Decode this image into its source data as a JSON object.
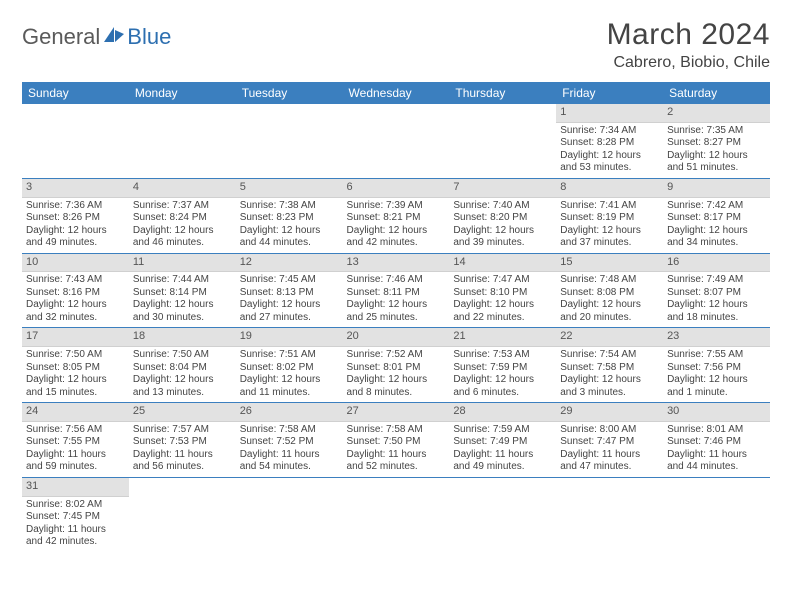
{
  "brand": {
    "part1": "General",
    "part2": "Blue"
  },
  "title": "March 2024",
  "location": "Cabrero, Biobio, Chile",
  "colors": {
    "header_bg": "#3b7fbf",
    "header_text": "#ffffff",
    "daybar_bg": "#e2e2e2",
    "row_border": "#3b7fbf",
    "logo_accent": "#2d6fb0",
    "logo_text": "#5a5a5a"
  },
  "day_header_labels": [
    "Sunday",
    "Monday",
    "Tuesday",
    "Wednesday",
    "Thursday",
    "Friday",
    "Saturday"
  ],
  "weeks": [
    [
      {
        "blank": true
      },
      {
        "blank": true
      },
      {
        "blank": true
      },
      {
        "blank": true
      },
      {
        "blank": true
      },
      {
        "n": "1",
        "sr": "Sunrise: 7:34 AM",
        "ss": "Sunset: 8:28 PM",
        "dl": "Daylight: 12 hours and 53 minutes."
      },
      {
        "n": "2",
        "sr": "Sunrise: 7:35 AM",
        "ss": "Sunset: 8:27 PM",
        "dl": "Daylight: 12 hours and 51 minutes."
      }
    ],
    [
      {
        "n": "3",
        "sr": "Sunrise: 7:36 AM",
        "ss": "Sunset: 8:26 PM",
        "dl": "Daylight: 12 hours and 49 minutes."
      },
      {
        "n": "4",
        "sr": "Sunrise: 7:37 AM",
        "ss": "Sunset: 8:24 PM",
        "dl": "Daylight: 12 hours and 46 minutes."
      },
      {
        "n": "5",
        "sr": "Sunrise: 7:38 AM",
        "ss": "Sunset: 8:23 PM",
        "dl": "Daylight: 12 hours and 44 minutes."
      },
      {
        "n": "6",
        "sr": "Sunrise: 7:39 AM",
        "ss": "Sunset: 8:21 PM",
        "dl": "Daylight: 12 hours and 42 minutes."
      },
      {
        "n": "7",
        "sr": "Sunrise: 7:40 AM",
        "ss": "Sunset: 8:20 PM",
        "dl": "Daylight: 12 hours and 39 minutes."
      },
      {
        "n": "8",
        "sr": "Sunrise: 7:41 AM",
        "ss": "Sunset: 8:19 PM",
        "dl": "Daylight: 12 hours and 37 minutes."
      },
      {
        "n": "9",
        "sr": "Sunrise: 7:42 AM",
        "ss": "Sunset: 8:17 PM",
        "dl": "Daylight: 12 hours and 34 minutes."
      }
    ],
    [
      {
        "n": "10",
        "sr": "Sunrise: 7:43 AM",
        "ss": "Sunset: 8:16 PM",
        "dl": "Daylight: 12 hours and 32 minutes."
      },
      {
        "n": "11",
        "sr": "Sunrise: 7:44 AM",
        "ss": "Sunset: 8:14 PM",
        "dl": "Daylight: 12 hours and 30 minutes."
      },
      {
        "n": "12",
        "sr": "Sunrise: 7:45 AM",
        "ss": "Sunset: 8:13 PM",
        "dl": "Daylight: 12 hours and 27 minutes."
      },
      {
        "n": "13",
        "sr": "Sunrise: 7:46 AM",
        "ss": "Sunset: 8:11 PM",
        "dl": "Daylight: 12 hours and 25 minutes."
      },
      {
        "n": "14",
        "sr": "Sunrise: 7:47 AM",
        "ss": "Sunset: 8:10 PM",
        "dl": "Daylight: 12 hours and 22 minutes."
      },
      {
        "n": "15",
        "sr": "Sunrise: 7:48 AM",
        "ss": "Sunset: 8:08 PM",
        "dl": "Daylight: 12 hours and 20 minutes."
      },
      {
        "n": "16",
        "sr": "Sunrise: 7:49 AM",
        "ss": "Sunset: 8:07 PM",
        "dl": "Daylight: 12 hours and 18 minutes."
      }
    ],
    [
      {
        "n": "17",
        "sr": "Sunrise: 7:50 AM",
        "ss": "Sunset: 8:05 PM",
        "dl": "Daylight: 12 hours and 15 minutes."
      },
      {
        "n": "18",
        "sr": "Sunrise: 7:50 AM",
        "ss": "Sunset: 8:04 PM",
        "dl": "Daylight: 12 hours and 13 minutes."
      },
      {
        "n": "19",
        "sr": "Sunrise: 7:51 AM",
        "ss": "Sunset: 8:02 PM",
        "dl": "Daylight: 12 hours and 11 minutes."
      },
      {
        "n": "20",
        "sr": "Sunrise: 7:52 AM",
        "ss": "Sunset: 8:01 PM",
        "dl": "Daylight: 12 hours and 8 minutes."
      },
      {
        "n": "21",
        "sr": "Sunrise: 7:53 AM",
        "ss": "Sunset: 7:59 PM",
        "dl": "Daylight: 12 hours and 6 minutes."
      },
      {
        "n": "22",
        "sr": "Sunrise: 7:54 AM",
        "ss": "Sunset: 7:58 PM",
        "dl": "Daylight: 12 hours and 3 minutes."
      },
      {
        "n": "23",
        "sr": "Sunrise: 7:55 AM",
        "ss": "Sunset: 7:56 PM",
        "dl": "Daylight: 12 hours and 1 minute."
      }
    ],
    [
      {
        "n": "24",
        "sr": "Sunrise: 7:56 AM",
        "ss": "Sunset: 7:55 PM",
        "dl": "Daylight: 11 hours and 59 minutes."
      },
      {
        "n": "25",
        "sr": "Sunrise: 7:57 AM",
        "ss": "Sunset: 7:53 PM",
        "dl": "Daylight: 11 hours and 56 minutes."
      },
      {
        "n": "26",
        "sr": "Sunrise: 7:58 AM",
        "ss": "Sunset: 7:52 PM",
        "dl": "Daylight: 11 hours and 54 minutes."
      },
      {
        "n": "27",
        "sr": "Sunrise: 7:58 AM",
        "ss": "Sunset: 7:50 PM",
        "dl": "Daylight: 11 hours and 52 minutes."
      },
      {
        "n": "28",
        "sr": "Sunrise: 7:59 AM",
        "ss": "Sunset: 7:49 PM",
        "dl": "Daylight: 11 hours and 49 minutes."
      },
      {
        "n": "29",
        "sr": "Sunrise: 8:00 AM",
        "ss": "Sunset: 7:47 PM",
        "dl": "Daylight: 11 hours and 47 minutes."
      },
      {
        "n": "30",
        "sr": "Sunrise: 8:01 AM",
        "ss": "Sunset: 7:46 PM",
        "dl": "Daylight: 11 hours and 44 minutes."
      }
    ],
    [
      {
        "n": "31",
        "sr": "Sunrise: 8:02 AM",
        "ss": "Sunset: 7:45 PM",
        "dl": "Daylight: 11 hours and 42 minutes."
      },
      {
        "blank": true
      },
      {
        "blank": true
      },
      {
        "blank": true
      },
      {
        "blank": true
      },
      {
        "blank": true
      },
      {
        "blank": true
      }
    ]
  ]
}
